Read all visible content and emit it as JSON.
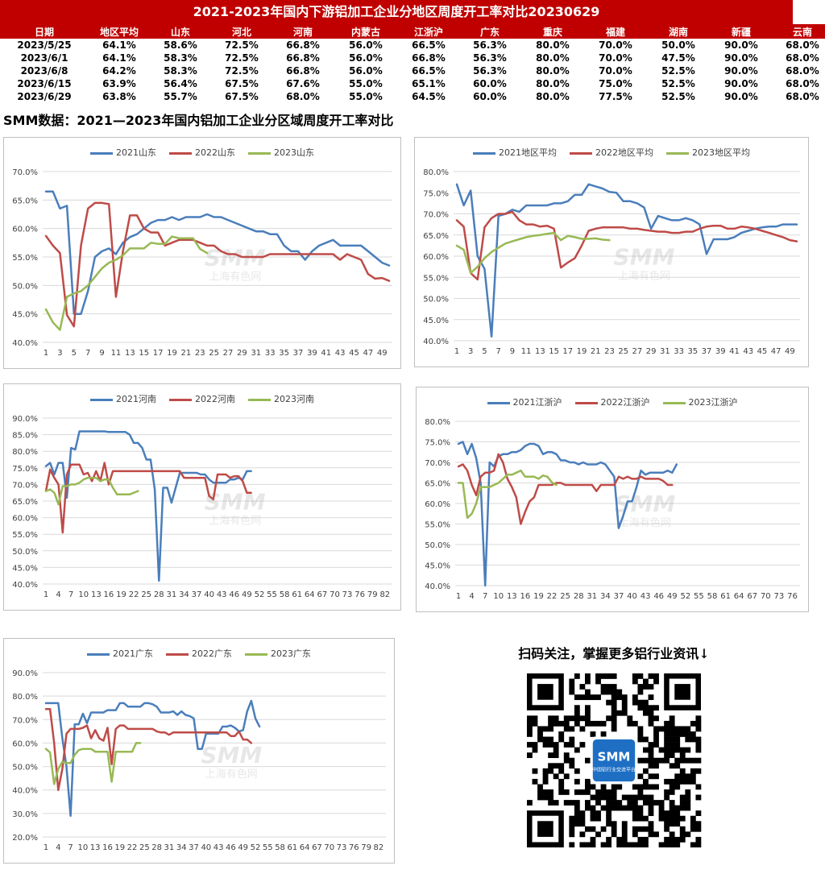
{
  "header": {
    "title": "2021-2023年国内下游铝加工企业分地区周度开工率对比20230629",
    "columns": [
      "日期",
      "地区平均",
      "山东",
      "河北",
      "河南",
      "内蒙古",
      "江浙沪",
      "广东",
      "重庆",
      "福建",
      "湖南",
      "新疆",
      "云南"
    ],
    "rows": [
      [
        "2023/5/25",
        "64.1%",
        "58.6%",
        "72.5%",
        "66.8%",
        "56.0%",
        "66.5%",
        "56.3%",
        "80.0%",
        "70.0%",
        "50.0%",
        "90.0%",
        "68.0%"
      ],
      [
        "2023/6/1",
        "64.1%",
        "58.3%",
        "72.5%",
        "66.8%",
        "56.0%",
        "66.8%",
        "56.3%",
        "80.0%",
        "70.0%",
        "47.5%",
        "90.0%",
        "68.0%"
      ],
      [
        "2023/6/8",
        "64.2%",
        "58.3%",
        "72.5%",
        "66.8%",
        "56.0%",
        "66.5%",
        "56.3%",
        "80.0%",
        "70.0%",
        "52.5%",
        "90.0%",
        "68.0%"
      ],
      [
        "2023/6/15",
        "63.9%",
        "56.4%",
        "67.5%",
        "67.6%",
        "55.0%",
        "65.1%",
        "60.0%",
        "80.0%",
        "75.0%",
        "52.5%",
        "90.0%",
        "68.0%"
      ],
      [
        "2023/6/29",
        "63.8%",
        "55.7%",
        "67.5%",
        "68.0%",
        "55.0%",
        "64.5%",
        "60.0%",
        "80.0%",
        "77.5%",
        "52.5%",
        "90.0%",
        "68.0%"
      ]
    ]
  },
  "subtitle": "SMM数据：2021—2023年国内铝加工企业分区域周度开工率对比",
  "colors": {
    "s2021": "#4a7ebb",
    "s2022": "#be4b48",
    "s2023": "#98b954",
    "header_bg": "#c00000"
  },
  "watermark": {
    "logo": "SMM",
    "text": "上海有色网"
  },
  "qr": {
    "caption": "扫码关注，掌握更多铝行业资讯↓",
    "logo": "SMM",
    "logo_sub": "中国铝行业交流平台",
    "icon": "qr-code-icon"
  },
  "chart_data": [
    {
      "type": "line",
      "title": "",
      "legend": "top",
      "ylim": [
        40,
        70
      ],
      "yticks": [
        "40.0%",
        "45.0%",
        "50.0%",
        "55.0%",
        "60.0%",
        "65.0%",
        "70.0%"
      ],
      "xticks": [
        "1",
        "3",
        "5",
        "7",
        "9",
        "11",
        "13",
        "15",
        "17",
        "19",
        "21",
        "23",
        "25",
        "27",
        "29",
        "31",
        "33",
        "35",
        "37",
        "39",
        "41",
        "43",
        "45",
        "47",
        "49"
      ],
      "xmax": 50,
      "series": [
        {
          "name": "2021山东",
          "values": [
            66.5,
            66.5,
            63.5,
            64,
            45,
            45,
            49,
            55,
            56,
            56.5,
            55.5,
            57.5,
            58.5,
            59,
            60,
            61,
            61.5,
            61.5,
            62,
            61.5,
            62,
            62,
            62,
            62.5,
            62,
            62,
            61.5,
            61,
            60.5,
            60,
            59.5,
            59.5,
            59,
            59,
            57,
            56,
            56,
            54.5,
            56,
            57,
            57.5,
            58,
            57,
            57,
            57,
            57,
            56,
            55,
            54,
            53.5
          ]
        },
        {
          "name": "2022山东",
          "values": [
            58.7,
            57,
            55.7,
            44.8,
            42.8,
            57,
            63.5,
            64.5,
            64.5,
            64.3,
            48,
            56,
            62.3,
            62.3,
            60,
            59.3,
            59.3,
            57,
            57.5,
            58,
            58,
            58,
            57.5,
            57,
            57,
            56,
            55.5,
            55.5,
            55,
            55,
            55,
            55,
            55.5,
            55.5,
            55.5,
            55.5,
            55.5,
            55.5,
            55.5,
            55.5,
            55.5,
            55.5,
            54.5,
            55.5,
            55,
            54.5,
            52,
            51.2,
            51.3,
            50.8
          ]
        },
        {
          "name": "2023山东",
          "values": [
            45.8,
            43.5,
            42.2,
            48,
            48.6,
            49,
            50,
            51.5,
            53,
            54,
            54.5,
            55.3,
            56.5,
            56.5,
            56.5,
            57.5,
            57.3,
            57.3,
            58.6,
            58.3,
            58.3,
            58.3,
            56.4,
            55.7
          ]
        }
      ]
    },
    {
      "type": "line",
      "title": "",
      "legend": "top",
      "ylim": [
        40,
        80
      ],
      "yticks": [
        "40.0%",
        "45.0%",
        "50.0%",
        "55.0%",
        "60.0%",
        "65.0%",
        "70.0%",
        "75.0%",
        "80.0%"
      ],
      "xticks": [
        "1",
        "3",
        "5",
        "7",
        "9",
        "11",
        "13",
        "15",
        "17",
        "19",
        "21",
        "23",
        "25",
        "27",
        "29",
        "31",
        "33",
        "35",
        "37",
        "39",
        "41",
        "43",
        "45",
        "47",
        "49"
      ],
      "xmax": 50,
      "series": [
        {
          "name": "2021地区平均",
          "values": [
            77,
            72,
            75.5,
            60,
            57,
            41,
            69.5,
            70,
            71,
            70.5,
            72,
            72,
            72,
            72,
            72.5,
            72.5,
            73,
            74.5,
            74.5,
            77,
            76.5,
            76,
            75.2,
            75,
            73,
            73,
            72.5,
            71.5,
            66.5,
            69.5,
            69,
            68.5,
            68.5,
            69,
            68.5,
            67.5,
            60.5,
            64,
            64,
            64,
            64.5,
            65.5,
            66,
            66.5,
            66.8,
            67,
            67,
            67.5,
            67.5,
            67.5
          ]
        },
        {
          "name": "2022地区平均",
          "values": [
            68.5,
            67,
            56,
            54.5,
            66.8,
            69,
            70,
            70,
            70.5,
            68.5,
            67.5,
            67.5,
            67,
            67.2,
            66.5,
            57.3,
            58.5,
            59.5,
            62.5,
            66,
            66.5,
            66.8,
            66.8,
            66.8,
            66.8,
            66.5,
            66.5,
            66.2,
            66,
            65.8,
            65.8,
            65.5,
            65.5,
            65.8,
            65.8,
            66.5,
            67,
            67.2,
            67.2,
            66.5,
            66.5,
            67,
            66.8,
            66.5,
            66,
            65.5,
            65,
            64.5,
            63.8,
            63.5
          ]
        },
        {
          "name": "2023地区平均",
          "values": [
            62.5,
            61.5,
            56,
            57.5,
            59.5,
            61,
            62,
            63,
            63.5,
            64,
            64.5,
            64.8,
            65,
            65.3,
            65.5,
            63.8,
            64.8,
            64.5,
            64.1,
            64.1,
            64.2,
            63.9,
            63.8
          ]
        }
      ]
    },
    {
      "type": "line",
      "title": "",
      "legend": "top",
      "ylim": [
        40,
        90
      ],
      "yticks": [
        "40.0%",
        "45.0%",
        "50.0%",
        "55.0%",
        "60.0%",
        "65.0%",
        "70.0%",
        "75.0%",
        "80.0%",
        "85.0%",
        "90.0%"
      ],
      "xticks": [
        "1",
        "4",
        "7",
        "10",
        "13",
        "16",
        "19",
        "22",
        "25",
        "28",
        "31",
        "34",
        "37",
        "40",
        "43",
        "46",
        "49",
        "52",
        "55",
        "58",
        "61",
        "64",
        "67",
        "70",
        "73",
        "76",
        "79",
        "82"
      ],
      "xmax": 83,
      "series": [
        {
          "name": "2021河南",
          "values": [
            75.5,
            76.5,
            73,
            76.5,
            76.5,
            66,
            81,
            80.5,
            86,
            86,
            86,
            86,
            86,
            86,
            86,
            85.8,
            85.8,
            85.8,
            85.8,
            85.8,
            85,
            82.5,
            82.5,
            81,
            77.5,
            77.5,
            68.5,
            41,
            69,
            69,
            64.5,
            69,
            73.5,
            73.5,
            73.5,
            73.5,
            73.5,
            73,
            73,
            71.5,
            70.5,
            70.5,
            70.5,
            70.5,
            71.5,
            71.5,
            72,
            71.5,
            74,
            74
          ]
        },
        {
          "name": "2022河南",
          "values": [
            68,
            74.5,
            72,
            70,
            55.5,
            73,
            76,
            76,
            76,
            73,
            73.5,
            71,
            74,
            71,
            76.5,
            70,
            74,
            74,
            74,
            74,
            74,
            74,
            74,
            74,
            74,
            74,
            74,
            74,
            74,
            74,
            74,
            74,
            74,
            72,
            72,
            72,
            72,
            72,
            72,
            66.5,
            65.5,
            73,
            73,
            73,
            72,
            72.5,
            72.5,
            71,
            67.5,
            67.5
          ]
        },
        {
          "name": "2023河南",
          "values": [
            68,
            68.5,
            67.5,
            64,
            69.5,
            69.5,
            70,
            70,
            70.5,
            71.5,
            72,
            72,
            72,
            71,
            71.5,
            71.5,
            69,
            67,
            67,
            67,
            67,
            67.5,
            68
          ]
        }
      ]
    },
    {
      "type": "line",
      "title": "",
      "legend": "top",
      "ylim": [
        40,
        80
      ],
      "yticks": [
        "40.0%",
        "45.0%",
        "50.0%",
        "55.0%",
        "60.0%",
        "65.0%",
        "70.0%",
        "75.0%",
        "80.0%"
      ],
      "xticks": [
        "1",
        "4",
        "7",
        "10",
        "13",
        "16",
        "19",
        "22",
        "25",
        "28",
        "31",
        "34",
        "37",
        "40",
        "43",
        "46",
        "49",
        "52",
        "55",
        "58",
        "61",
        "64",
        "67",
        "70",
        "73",
        "76"
      ],
      "xmax": 77,
      "series": [
        {
          "name": "2021江浙沪",
          "values": [
            74.5,
            75,
            72,
            74.5,
            71,
            65,
            40,
            70,
            69,
            71.5,
            72,
            72,
            72.5,
            72.5,
            73,
            74,
            74.5,
            74.5,
            74,
            72,
            72.5,
            72.5,
            72,
            70.5,
            70.5,
            70,
            70,
            69.5,
            70,
            69.5,
            69.5,
            69.5,
            70,
            69.5,
            68,
            66.5,
            54,
            57,
            60.5,
            60.5,
            64,
            68,
            67,
            67.5,
            67.5,
            67.5,
            67.5,
            68,
            67.5,
            69.5
          ]
        },
        {
          "name": "2022江浙沪",
          "values": [
            69,
            69.5,
            68,
            64.5,
            62,
            66.5,
            67.5,
            67.5,
            68,
            72,
            70,
            66,
            64,
            61.5,
            55,
            58,
            60.5,
            61.5,
            64.5,
            64.5,
            64.5,
            64.5,
            65,
            65,
            64.5,
            64.5,
            64.5,
            64.5,
            64.5,
            64.5,
            64.5,
            63,
            64.5,
            64.5,
            64.5,
            64.5,
            66.5,
            66,
            66.5,
            66,
            66,
            66.5,
            66,
            66,
            66,
            66,
            65.5,
            64.5,
            64.5
          ]
        },
        {
          "name": "2023江浙沪",
          "values": [
            65,
            65,
            56.5,
            57.5,
            60,
            64,
            64,
            64,
            64.5,
            65,
            66,
            67,
            67,
            67.5,
            68,
            66.5,
            66.5,
            66.5,
            66,
            66.8,
            66.5,
            65.1,
            64.5
          ]
        }
      ]
    },
    {
      "type": "line",
      "title": "",
      "legend": "top",
      "ylim": [
        20,
        90
      ],
      "yticks": [
        "20.0%",
        "30.0%",
        "40.0%",
        "50.0%",
        "60.0%",
        "70.0%",
        "80.0%",
        "90.0%"
      ],
      "xticks": [
        "1",
        "4",
        "7",
        "10",
        "13",
        "16",
        "19",
        "22",
        "25",
        "28",
        "31",
        "34",
        "37",
        "40",
        "43",
        "46",
        "49",
        "52",
        "55",
        "58",
        "61",
        "64",
        "67",
        "70",
        "73",
        "76",
        "79",
        "82"
      ],
      "xmax": 83,
      "series": [
        {
          "name": "2021广东",
          "values": [
            77,
            77,
            77,
            77,
            62,
            50,
            29,
            68,
            68,
            72.5,
            68.5,
            73,
            73,
            73,
            73,
            74,
            74,
            74,
            77,
            77,
            75.5,
            75.5,
            75.5,
            75.5,
            77,
            77,
            76.5,
            75.5,
            73,
            73,
            73,
            73.5,
            72,
            73.5,
            72,
            71.5,
            70.5,
            57.5,
            57.5,
            64,
            64,
            64,
            64,
            67,
            67,
            67.5,
            66.5,
            65,
            65.5,
            73.5,
            78,
            70.5,
            67
          ]
        },
        {
          "name": "2022广东",
          "values": [
            74.5,
            74.5,
            60,
            40,
            49,
            64,
            66,
            66,
            66,
            66.5,
            67.5,
            62,
            65.5,
            62,
            61,
            66.5,
            51,
            66,
            67.5,
            67.5,
            66,
            66,
            66,
            66,
            66,
            66,
            66,
            65,
            64.5,
            64.5,
            63.5,
            64.5,
            64.5,
            64.5,
            64.5,
            64.5,
            64.5,
            64.5,
            64.5,
            64.5,
            64.5,
            64.5,
            64.5,
            64.5,
            64.5,
            63,
            63,
            65,
            61.5,
            61.5,
            60
          ]
        },
        {
          "name": "2023广东",
          "values": [
            57.5,
            56,
            42.5,
            49,
            52,
            51.5,
            51.5,
            55,
            57,
            57.5,
            57.5,
            57.5,
            56.3,
            56.3,
            56.3,
            56.3,
            43.5,
            56.3,
            56.3,
            56.3,
            56.3,
            56.3,
            60,
            60
          ]
        }
      ]
    }
  ]
}
